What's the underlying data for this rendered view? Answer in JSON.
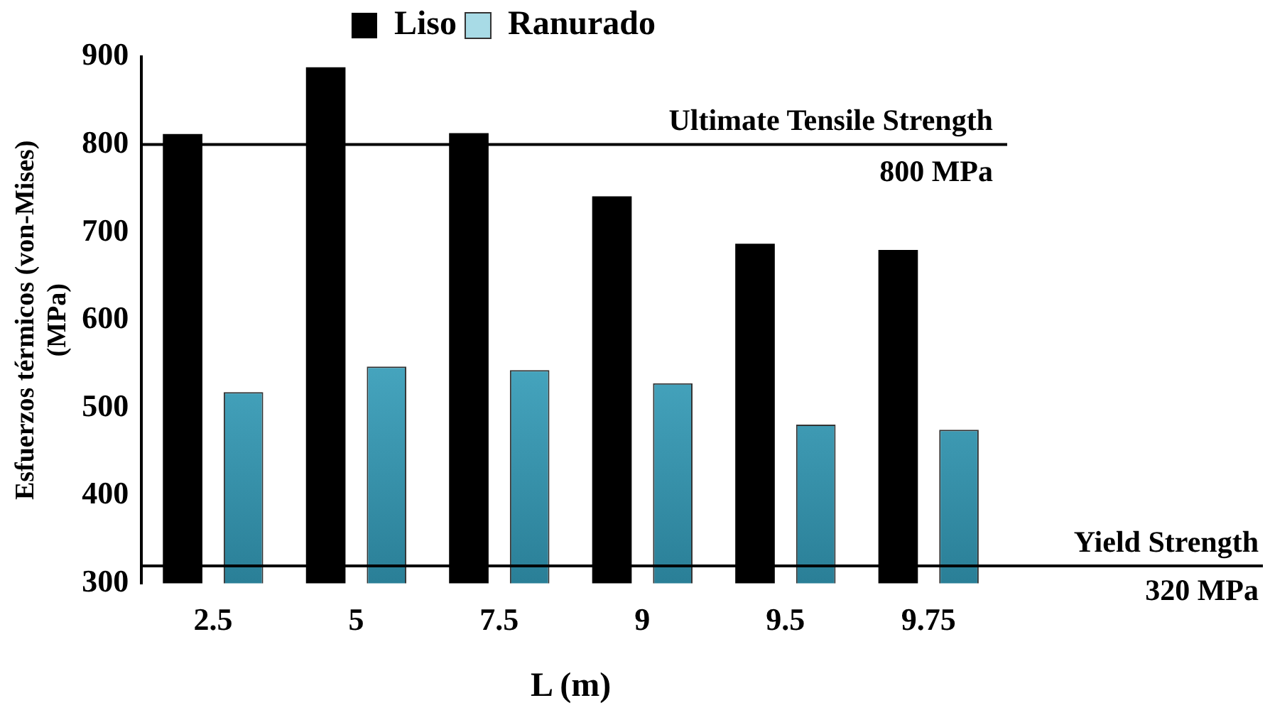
{
  "chart_data": {
    "type": "bar",
    "xlabel": "L (m)",
    "ylabel": "Esfuerzos térmicos (von-Mises)\n(MPa)",
    "categories": [
      "2.5",
      "5",
      "7.5",
      "9",
      "9.5",
      "9.75"
    ],
    "series": [
      {
        "name": "Liso",
        "color": "#000000",
        "values": [
          812,
          888,
          813,
          741,
          687,
          680
        ]
      },
      {
        "name": "Ranurado",
        "color": "#4bacc6",
        "values": [
          518,
          547,
          543,
          528,
          481,
          475
        ]
      }
    ],
    "ylim": [
      300,
      900
    ],
    "yticks": [
      300,
      400,
      500,
      600,
      700,
      800,
      900
    ],
    "grid": false,
    "legend": "top",
    "ref_lines": [
      {
        "axis": "y",
        "value": 800,
        "label": "Ultimate Tensile Strength\n800 MPa",
        "color": "#000000"
      },
      {
        "axis": "y",
        "value": 320,
        "label": "Yield Strength\n320 MPa",
        "color": "#000000"
      }
    ]
  }
}
